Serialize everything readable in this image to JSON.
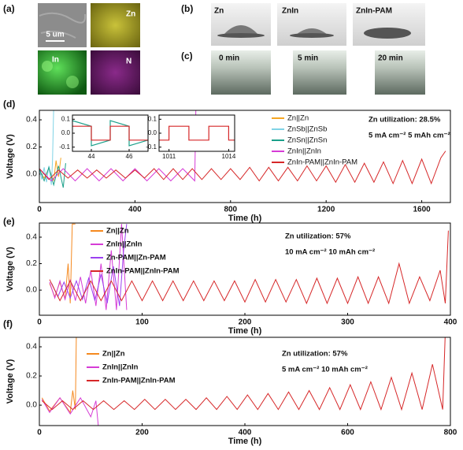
{
  "figure": {
    "panel_labels": [
      "(a)",
      "(b)",
      "(c)",
      "(d)",
      "(e)",
      "(f)"
    ],
    "panel_a": {
      "labels": [
        "5 um",
        "Zn",
        "In",
        "N"
      ]
    },
    "panel_b": {
      "labels": [
        "Zn",
        "ZnIn",
        "ZnIn-PAM"
      ]
    },
    "panel_c": {
      "labels": [
        "0 min",
        "5 min",
        "20 min"
      ]
    }
  },
  "chart_data": [
    {
      "type": "line",
      "xlabel": "Time (h)",
      "ylabel": "Voltage (V)",
      "xlim": [
        0,
        1720
      ],
      "xticks": [
        0,
        400,
        800,
        1200,
        1600
      ],
      "ylim": [
        -0.21,
        0.47
      ],
      "yticks": [
        {
          "value": 0,
          "label": "0.0"
        },
        0.2,
        0.4
      ],
      "legend": "upper right",
      "annotations": [
        "Zn utilization: 28.5%",
        "5 mA cm⁻² 5 mAh cm⁻²"
      ],
      "series": [
        {
          "name": "Zn||Zn",
          "color": "#f5a623",
          "x": [
            0,
            20,
            40,
            60,
            70,
            80,
            90
          ],
          "values": [
            0.03,
            -0.03,
            0.04,
            -0.05,
            0.1,
            -0.02,
            0.12
          ]
        },
        {
          "name": "ZnSb||ZnSb",
          "color": "#7fd3e6",
          "x": [
            0,
            10,
            20,
            30,
            40,
            50,
            55,
            60
          ],
          "values": [
            0.04,
            -0.04,
            0.05,
            -0.06,
            0.06,
            -0.08,
            0.1,
            0.5
          ]
        },
        {
          "name": "ZnSn||ZnSn",
          "color": "#1aa08a",
          "x": [
            0,
            20,
            40,
            60,
            80,
            100,
            110
          ],
          "values": [
            0.04,
            -0.05,
            0.05,
            -0.08,
            0.06,
            -0.1,
            0.08
          ]
        },
        {
          "name": "ZnIn||ZnIn",
          "color": "#d63cd6",
          "x": [
            0,
            50,
            100,
            150,
            200,
            250,
            300,
            350,
            400,
            450,
            500,
            550,
            600,
            650,
            655
          ],
          "values": [
            0.04,
            -0.05,
            0.04,
            -0.05,
            0.04,
            -0.05,
            0.04,
            -0.05,
            0.04,
            -0.05,
            0.04,
            -0.05,
            0.04,
            -0.05,
            0.5
          ]
        },
        {
          "name": "ZnIn-PAM||ZnIn-PAM",
          "color": "#d62728",
          "x": [
            0,
            40,
            80,
            120,
            160,
            200,
            240,
            280,
            320,
            360,
            400,
            440,
            480,
            520,
            560,
            600,
            640,
            680,
            720,
            760,
            800,
            840,
            880,
            920,
            960,
            1000,
            1040,
            1080,
            1120,
            1160,
            1200,
            1240,
            1280,
            1320,
            1360,
            1400,
            1440,
            1480,
            1520,
            1560,
            1600,
            1640,
            1680,
            1700
          ],
          "values": [
            0.04,
            -0.04,
            0.03,
            -0.03,
            0.03,
            -0.03,
            0.03,
            -0.03,
            0.03,
            -0.03,
            0.03,
            -0.03,
            0.04,
            -0.04,
            0.04,
            -0.04,
            0.04,
            -0.04,
            0.04,
            -0.04,
            0.04,
            -0.04,
            0.05,
            -0.05,
            0.05,
            -0.05,
            0.05,
            -0.05,
            0.06,
            -0.05,
            0.06,
            -0.06,
            0.07,
            -0.06,
            0.08,
            -0.06,
            0.09,
            -0.07,
            0.1,
            -0.07,
            0.11,
            -0.07,
            0.12,
            0.17
          ]
        }
      ],
      "insets": [
        {
          "type": "line",
          "xlim": [
            43,
            47
          ],
          "xticks": [
            44,
            46
          ],
          "ylim": [
            -0.13,
            0.13
          ],
          "yticks": [
            0.1,
            {
              "value": 0,
              "label": "0.0"
            },
            -0.1
          ],
          "series": [
            {
              "name": "ZnSn||ZnSn",
              "color": "#1aa08a",
              "x": [
                43,
                44,
                44,
                45,
                45,
                46,
                46,
                47
              ],
              "values": [
                0.09,
                0.05,
                -0.09,
                -0.05,
                0.09,
                0.05,
                -0.09,
                -0.05
              ]
            },
            {
              "name": "ZnIn-PAM||ZnIn-PAM",
              "color": "#d62728",
              "x": [
                43,
                44,
                44,
                45,
                45,
                46,
                46,
                47
              ],
              "values": [
                0.05,
                0.05,
                -0.05,
                -0.05,
                0.05,
                0.05,
                -0.05,
                -0.05
              ]
            }
          ]
        },
        {
          "type": "line",
          "xlim": [
            1010.5,
            1014.3
          ],
          "xticks": [
            1011,
            1014
          ],
          "ylim": [
            -0.13,
            0.13
          ],
          "yticks": [
            0.1,
            {
              "value": 0,
              "label": "0.0"
            },
            -0.1
          ],
          "series": [
            {
              "name": "ZnIn-PAM||ZnIn-PAM",
              "color": "#d62728",
              "x": [
                1010.5,
                1011,
                1011,
                1012,
                1012,
                1013,
                1013,
                1014,
                1014,
                1014.3
              ],
              "values": [
                -0.05,
                -0.05,
                0.05,
                0.05,
                -0.05,
                -0.05,
                0.05,
                0.05,
                -0.05,
                -0.05
              ]
            }
          ]
        }
      ]
    },
    {
      "type": "line",
      "xlabel": "Time (h)",
      "ylabel": "Voltage (V)",
      "xlim": [
        0,
        400
      ],
      "xticks": [
        0,
        100,
        200,
        300,
        400
      ],
      "ylim": [
        -0.19,
        0.507
      ],
      "yticks": [
        {
          "value": 0,
          "label": "0.0"
        },
        0.2,
        0.4
      ],
      "legend": "upper left",
      "annotations": [
        "Zn utilization: 57%",
        "10 mA cm⁻² 10 mAh cm⁻²"
      ],
      "series": [
        {
          "name": "Zn||Zn",
          "color": "#f5891f",
          "x": [
            10,
            15,
            20,
            25,
            28,
            30,
            32,
            35
          ],
          "values": [
            0.05,
            -0.05,
            0.06,
            -0.07,
            0.2,
            -0.1,
            0.5,
            0.5
          ]
        },
        {
          "name": "ZnIn||ZnIn",
          "color": "#d63cd6",
          "x": [
            10,
            15,
            20,
            25,
            30,
            35,
            40,
            45,
            50,
            55,
            60,
            65,
            70,
            75,
            80,
            85
          ],
          "values": [
            0.06,
            -0.06,
            0.07,
            -0.07,
            0.08,
            -0.08,
            0.1,
            -0.1,
            0.15,
            -0.12,
            0.2,
            -0.15,
            0.3,
            -0.15,
            0.5,
            -0.15
          ]
        },
        {
          "name": "Zn-PAM||Zn-PAM",
          "color": "#9b40f0",
          "x": [
            12,
            18,
            24,
            30,
            36,
            42,
            48,
            54,
            60,
            66,
            72,
            78,
            82,
            85
          ],
          "values": [
            0.05,
            -0.05,
            0.06,
            -0.06,
            0.07,
            -0.07,
            0.09,
            -0.08,
            0.12,
            -0.1,
            0.18,
            -0.12,
            0.3,
            0.5
          ]
        },
        {
          "name": "ZnIn-PAM||ZnIn-PAM",
          "color": "#d62728",
          "x": [
            10,
            20,
            30,
            40,
            50,
            60,
            70,
            80,
            90,
            100,
            110,
            120,
            130,
            140,
            150,
            160,
            170,
            180,
            190,
            200,
            210,
            220,
            230,
            240,
            250,
            260,
            270,
            280,
            290,
            300,
            310,
            320,
            330,
            340,
            350,
            360,
            370,
            380,
            390,
            395,
            398
          ],
          "values": [
            0.08,
            -0.08,
            0.07,
            -0.08,
            0.07,
            -0.08,
            0.07,
            -0.08,
            0.07,
            -0.08,
            0.07,
            -0.08,
            0.07,
            -0.08,
            0.07,
            -0.08,
            0.07,
            -0.08,
            0.07,
            -0.09,
            0.08,
            -0.09,
            0.08,
            -0.09,
            0.08,
            -0.1,
            0.09,
            -0.1,
            0.09,
            -0.1,
            0.1,
            -0.1,
            0.1,
            -0.1,
            0.2,
            -0.1,
            0.1,
            -0.08,
            0.15,
            -0.1,
            0.45
          ]
        }
      ]
    },
    {
      "type": "line",
      "xlabel": "Time (h)",
      "ylabel": "Voltage (V)",
      "xlim": [
        0,
        800
      ],
      "xticks": [
        0,
        200,
        400,
        600,
        800
      ],
      "ylim": [
        -0.14,
        0.465
      ],
      "yticks": [
        {
          "value": 0,
          "label": "0.0"
        },
        0.2,
        0.4
      ],
      "legend": "upper left",
      "annotations": [
        "Zn utilization: 57%",
        "5 mA cm⁻² 10 mAh cm⁻²"
      ],
      "series": [
        {
          "name": "Zn||Zn",
          "color": "#f5891f",
          "x": [
            5,
            20,
            40,
            60,
            65,
            70,
            72
          ],
          "values": [
            0.05,
            -0.04,
            0.05,
            -0.05,
            0.1,
            -0.03,
            0.5
          ]
        },
        {
          "name": "ZnIn||ZnIn",
          "color": "#d63cd6",
          "x": [
            5,
            20,
            40,
            60,
            80,
            100,
            110,
            115
          ],
          "values": [
            0.04,
            -0.05,
            0.05,
            -0.06,
            0.05,
            -0.08,
            0.03,
            -0.15
          ]
        },
        {
          "name": "ZnIn-PAM||ZnIn-PAM",
          "color": "#d62728",
          "x": [
            5,
            25,
            45,
            65,
            85,
            105,
            125,
            145,
            165,
            185,
            205,
            225,
            245,
            265,
            285,
            305,
            325,
            345,
            365,
            385,
            405,
            425,
            445,
            465,
            485,
            505,
            525,
            545,
            565,
            585,
            605,
            625,
            645,
            665,
            685,
            705,
            725,
            745,
            765,
            785,
            790
          ],
          "values": [
            0.03,
            -0.03,
            0.03,
            -0.03,
            0.03,
            -0.03,
            0.03,
            -0.03,
            0.03,
            -0.03,
            0.04,
            -0.03,
            0.04,
            -0.03,
            0.04,
            -0.03,
            0.05,
            -0.03,
            0.06,
            -0.03,
            0.07,
            -0.03,
            0.08,
            -0.03,
            0.09,
            -0.03,
            0.1,
            -0.03,
            0.12,
            -0.03,
            0.14,
            -0.03,
            0.16,
            -0.03,
            0.19,
            -0.03,
            0.22,
            -0.03,
            0.28,
            -0.03,
            0.5
          ]
        }
      ]
    }
  ]
}
